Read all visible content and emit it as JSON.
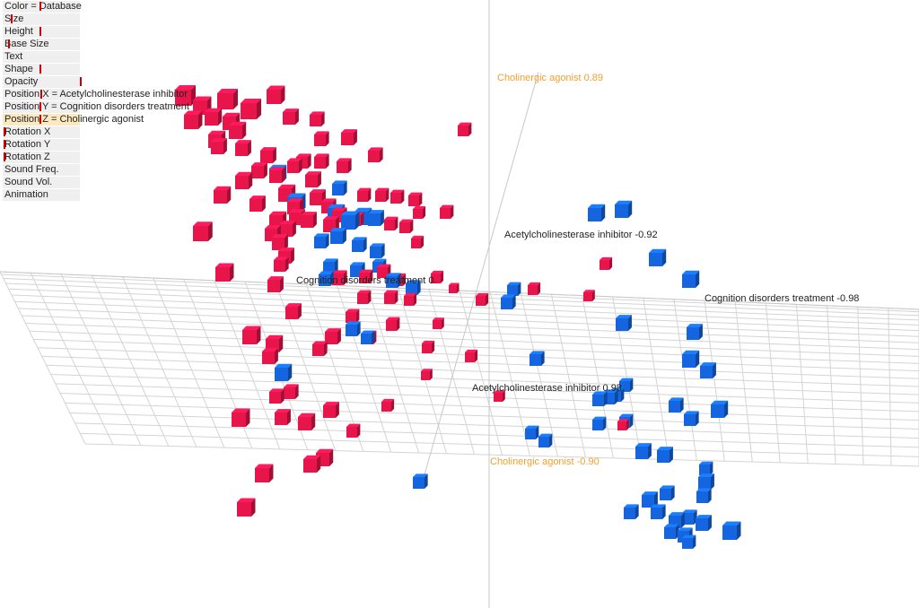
{
  "panel": {
    "rows": [
      {
        "label": "Color = Database",
        "selected": false
      },
      {
        "label": "Size",
        "selected": false
      },
      {
        "label": "Height",
        "selected": false
      },
      {
        "label": "Base Size",
        "selected": false
      },
      {
        "label": "Text",
        "selected": false
      },
      {
        "label": "Shape",
        "selected": false
      },
      {
        "label": "Opacity",
        "selected": false
      },
      {
        "label": "Position X = Acetylcholinesterase inhibitor",
        "selected": false
      },
      {
        "label": "Position Y = Cognition disorders treatment",
        "selected": false
      },
      {
        "label": "Position Z = Cholinergic agonist",
        "selected": true
      },
      {
        "label": "Rotation X",
        "selected": false
      },
      {
        "label": "Rotation Y",
        "selected": false
      },
      {
        "label": "Rotation Z",
        "selected": false
      },
      {
        "label": "Sound Freq.",
        "selected": false
      },
      {
        "label": "Sound Vol.",
        "selected": false
      },
      {
        "label": "Animation",
        "selected": false
      }
    ]
  },
  "axis_labels": {
    "z_positive": "Cholinergic agonist 0.89",
    "z_negative": "Cholinergic agonist -0.90",
    "x_negative": "Acetylcholinesterase inhibitor -0.92",
    "x_positive": "Acetylcholinesterase inhibitor 0.98",
    "y_positive": "Cognition disorders treatment 0.",
    "y_negative": "Cognition disorders treatment -0.98"
  },
  "colors": {
    "database_red": "#e8154a",
    "database_blue": "#1565e0",
    "z_axis_label": "#f0a030",
    "axis_text": "#222222",
    "grid": "#d4d4d4",
    "selected_row": "#fde9c0"
  },
  "icons": [
    "cube-marker"
  ]
}
